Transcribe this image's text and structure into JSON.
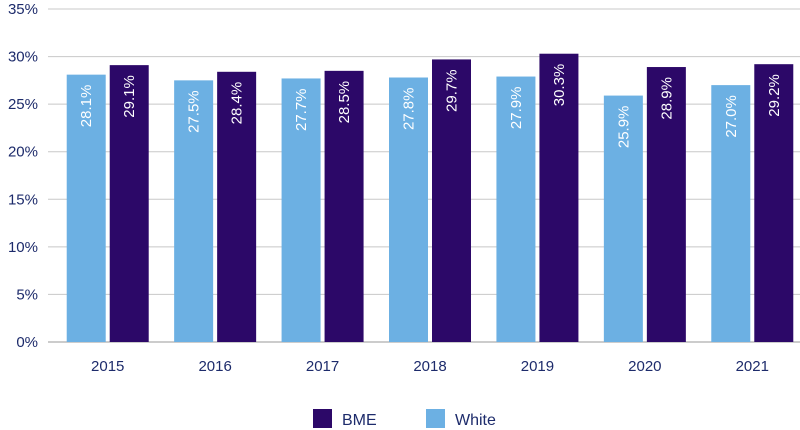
{
  "chart_data": {
    "type": "bar",
    "categories": [
      "2015",
      "2016",
      "2017",
      "2018",
      "2019",
      "2020",
      "2021"
    ],
    "series": [
      {
        "name": "White",
        "values": [
          28.1,
          27.5,
          27.7,
          27.8,
          27.9,
          25.9,
          27.0
        ],
        "color": "#6cb0e3"
      },
      {
        "name": "BME",
        "values": [
          29.1,
          28.4,
          28.5,
          29.7,
          30.3,
          28.9,
          29.2
        ],
        "color": "#2c0868"
      }
    ],
    "ylim": [
      0,
      35
    ],
    "yticks": [
      0,
      5,
      10,
      15,
      20,
      25,
      30,
      35
    ],
    "ytick_labels": [
      "0%",
      "5%",
      "10%",
      "15%",
      "20%",
      "25%",
      "30%",
      "35%"
    ],
    "data_labels": [
      [
        "28.1%",
        "27.5%",
        "27.7%",
        "27.8%",
        "27.9%",
        "25.9%",
        "27.0%"
      ],
      [
        "29.1%",
        "28.4%",
        "28.5%",
        "29.7%",
        "30.3%",
        "28.9%",
        "29.2%"
      ]
    ],
    "legend": {
      "placement": "bottom-center",
      "entries": [
        {
          "label": "BME",
          "color": "#2c0868"
        },
        {
          "label": "White",
          "color": "#6cb0e3"
        }
      ]
    },
    "grid": true,
    "title": "",
    "xlabel": "",
    "ylabel": ""
  }
}
